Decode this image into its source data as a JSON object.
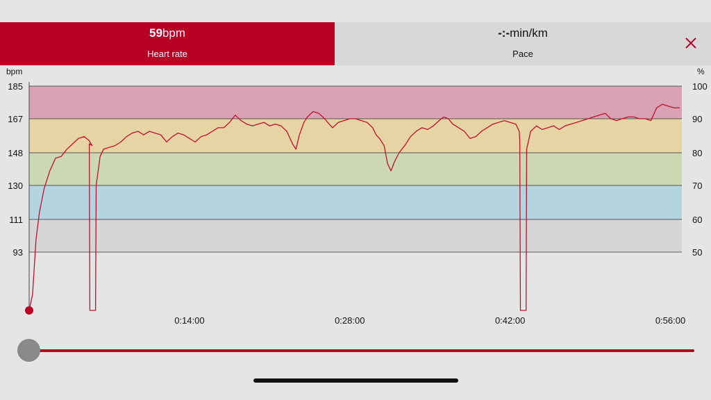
{
  "tabs": {
    "heart_rate": {
      "value": "59",
      "unit": "bpm",
      "label": "Heart rate"
    },
    "pace": {
      "value": "-:-",
      "unit": "min/km",
      "label": "Pace"
    }
  },
  "close_icon": "close-icon",
  "colors": {
    "accent": "#b80025",
    "line": "#c0102c",
    "zone5": "#d8a2b4",
    "zone4": "#e6d4a4",
    "zone3": "#ccd8b2",
    "zone2": "#b4d4df",
    "zone1": "#d6d6d6"
  },
  "chart_data": {
    "type": "line",
    "left_axis": {
      "label": "bpm",
      "ticks": [
        "185",
        "167",
        "148",
        "130",
        "111",
        "93"
      ]
    },
    "right_axis": {
      "label": "%",
      "ticks": [
        "100",
        "90",
        "80",
        "70",
        "60",
        "50"
      ]
    },
    "x_ticks": [
      "0:14:00",
      "0:28:00",
      "0:42:00",
      "0:56:00"
    ],
    "x_range_minutes": [
      0,
      57
    ],
    "y_range_bpm": [
      75,
      185
    ],
    "zones_bpm": [
      [
        167,
        185
      ],
      [
        148,
        167
      ],
      [
        130,
        148
      ],
      [
        111,
        130
      ],
      [
        93,
        111
      ]
    ],
    "series": [
      {
        "values": [
          [
            0.0,
            75
          ],
          [
            0.3,
            80
          ],
          [
            0.6,
            100
          ],
          [
            0.9,
            115
          ],
          [
            1.3,
            128
          ],
          [
            1.8,
            138
          ],
          [
            2.3,
            145
          ],
          [
            2.8,
            146
          ],
          [
            3.3,
            150
          ],
          [
            3.8,
            153
          ],
          [
            4.3,
            156
          ],
          [
            4.8,
            157
          ],
          [
            5.2,
            155
          ],
          [
            5.5,
            152
          ],
          [
            5.25,
            153
          ],
          [
            5.3,
            75
          ],
          [
            5.8,
            75
          ],
          [
            5.85,
            130
          ],
          [
            6.2,
            146
          ],
          [
            6.5,
            150
          ],
          [
            7.0,
            151
          ],
          [
            7.5,
            152
          ],
          [
            8.0,
            154
          ],
          [
            8.5,
            157
          ],
          [
            9.0,
            159
          ],
          [
            9.5,
            160
          ],
          [
            10.0,
            158
          ],
          [
            10.5,
            160
          ],
          [
            11.0,
            159
          ],
          [
            11.5,
            158
          ],
          [
            12.0,
            154
          ],
          [
            12.5,
            157
          ],
          [
            13.0,
            159
          ],
          [
            13.5,
            158
          ],
          [
            14.0,
            156
          ],
          [
            14.5,
            154
          ],
          [
            15.0,
            157
          ],
          [
            15.5,
            158
          ],
          [
            16.0,
            160
          ],
          [
            16.5,
            162
          ],
          [
            17.0,
            162
          ],
          [
            17.5,
            165
          ],
          [
            18.0,
            169
          ],
          [
            18.5,
            166
          ],
          [
            19.0,
            164
          ],
          [
            19.5,
            163
          ],
          [
            20.0,
            164
          ],
          [
            20.5,
            165
          ],
          [
            21.0,
            163
          ],
          [
            21.5,
            164
          ],
          [
            22.0,
            163
          ],
          [
            22.5,
            160
          ],
          [
            23.0,
            153
          ],
          [
            23.3,
            150
          ],
          [
            23.6,
            158
          ],
          [
            24.0,
            165
          ],
          [
            24.3,
            168
          ],
          [
            24.8,
            171
          ],
          [
            25.3,
            170
          ],
          [
            25.8,
            167
          ],
          [
            26.2,
            164
          ],
          [
            26.5,
            162
          ],
          [
            27.0,
            165
          ],
          [
            27.5,
            166
          ],
          [
            28.0,
            167
          ],
          [
            28.5,
            167
          ],
          [
            29.0,
            166
          ],
          [
            29.5,
            165
          ],
          [
            30.0,
            162
          ],
          [
            30.3,
            158
          ],
          [
            30.6,
            156
          ],
          [
            31.0,
            152
          ],
          [
            31.3,
            142
          ],
          [
            31.6,
            138
          ],
          [
            31.9,
            143
          ],
          [
            32.3,
            148
          ],
          [
            32.8,
            152
          ],
          [
            33.3,
            157
          ],
          [
            33.8,
            160
          ],
          [
            34.3,
            162
          ],
          [
            34.8,
            161
          ],
          [
            35.3,
            163
          ],
          [
            35.8,
            166
          ],
          [
            36.2,
            168
          ],
          [
            36.6,
            167
          ],
          [
            37.0,
            164
          ],
          [
            37.5,
            162
          ],
          [
            38.0,
            160
          ],
          [
            38.5,
            156
          ],
          [
            39.0,
            157
          ],
          [
            39.5,
            160
          ],
          [
            40.0,
            162
          ],
          [
            40.5,
            164
          ],
          [
            41.0,
            165
          ],
          [
            41.5,
            166
          ],
          [
            42.0,
            165
          ],
          [
            42.5,
            164
          ],
          [
            42.8,
            160
          ],
          [
            42.85,
            155
          ],
          [
            42.9,
            75
          ],
          [
            43.4,
            75
          ],
          [
            43.45,
            150
          ],
          [
            43.8,
            160
          ],
          [
            44.3,
            163
          ],
          [
            44.8,
            161
          ],
          [
            45.3,
            162
          ],
          [
            45.8,
            163
          ],
          [
            46.3,
            161
          ],
          [
            46.8,
            163
          ],
          [
            47.3,
            164
          ],
          [
            47.8,
            165
          ],
          [
            48.3,
            166
          ],
          [
            48.8,
            167
          ],
          [
            49.3,
            168
          ],
          [
            49.8,
            169
          ],
          [
            50.3,
            170
          ],
          [
            50.8,
            167
          ],
          [
            51.3,
            166
          ],
          [
            51.8,
            167
          ],
          [
            52.3,
            168
          ],
          [
            52.8,
            168
          ],
          [
            53.3,
            167
          ],
          [
            53.8,
            167
          ],
          [
            54.3,
            166
          ],
          [
            54.8,
            173
          ],
          [
            55.3,
            175
          ],
          [
            55.8,
            174
          ],
          [
            56.3,
            173
          ],
          [
            56.8,
            173
          ]
        ]
      }
    ],
    "current_point_bpm": 59
  },
  "slider": {
    "position_fraction": 0.0
  }
}
